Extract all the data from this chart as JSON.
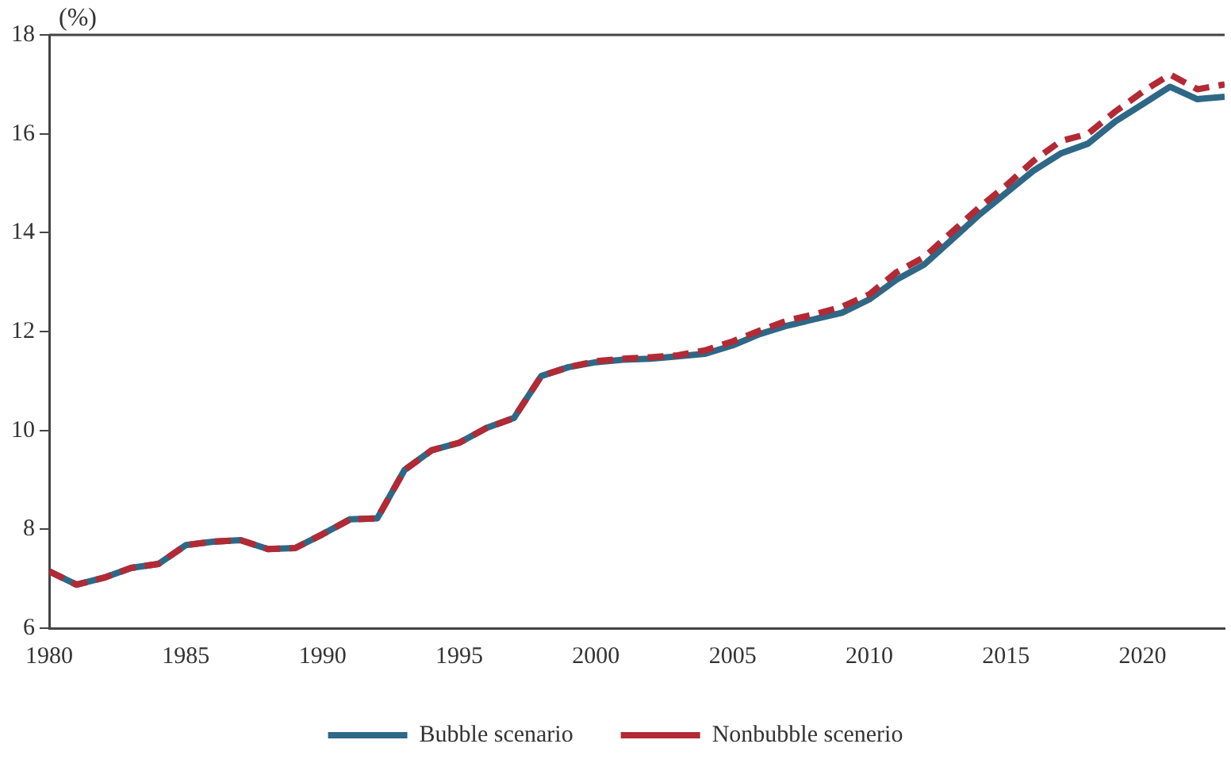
{
  "chart_data": {
    "type": "line",
    "ylabel": "(%)",
    "x": [
      1980,
      1981,
      1982,
      1983,
      1984,
      1985,
      1986,
      1987,
      1988,
      1989,
      1990,
      1991,
      1992,
      1993,
      1994,
      1995,
      1996,
      1997,
      1998,
      1999,
      2000,
      2001,
      2002,
      2003,
      2004,
      2005,
      2006,
      2007,
      2008,
      2009,
      2010,
      2011,
      2012,
      2013,
      2014,
      2015,
      2016,
      2017,
      2018,
      2019,
      2020,
      2021,
      2022,
      2023
    ],
    "series": [
      {
        "name": "Bubble scenario",
        "color": "#2e6886",
        "line_style": "solid",
        "values": [
          7.15,
          6.88,
          7.02,
          7.22,
          7.3,
          7.68,
          7.75,
          7.78,
          7.6,
          7.62,
          7.9,
          8.2,
          8.22,
          9.2,
          9.6,
          9.75,
          10.05,
          10.25,
          11.1,
          11.28,
          11.38,
          11.43,
          11.45,
          11.5,
          11.55,
          11.72,
          11.95,
          12.12,
          12.25,
          12.38,
          12.65,
          13.05,
          13.35,
          13.85,
          14.35,
          14.8,
          15.25,
          15.6,
          15.8,
          16.25,
          16.6,
          16.95,
          16.7,
          16.75
        ]
      },
      {
        "name": "Nonbubble scenerio",
        "color": "#b22a35",
        "line_style": "dashed",
        "values": [
          7.15,
          6.88,
          7.02,
          7.22,
          7.3,
          7.68,
          7.75,
          7.78,
          7.6,
          7.62,
          7.9,
          8.2,
          8.22,
          9.2,
          9.6,
          9.75,
          10.05,
          10.25,
          11.1,
          11.28,
          11.4,
          11.45,
          11.48,
          11.52,
          11.62,
          11.8,
          12.02,
          12.22,
          12.35,
          12.5,
          12.75,
          13.2,
          13.5,
          14.0,
          14.5,
          14.95,
          15.45,
          15.85,
          16.0,
          16.45,
          16.85,
          17.2,
          16.9,
          17.0
        ]
      }
    ],
    "xlim": [
      1980,
      2023
    ],
    "xticks": [
      1980,
      1985,
      1990,
      1995,
      2000,
      2005,
      2010,
      2015,
      2020
    ],
    "ylim": [
      6,
      18
    ],
    "yticks": [
      6,
      8,
      10,
      12,
      14,
      16,
      18
    ],
    "grid": false,
    "legend": "bottom",
    "marker": "none"
  }
}
